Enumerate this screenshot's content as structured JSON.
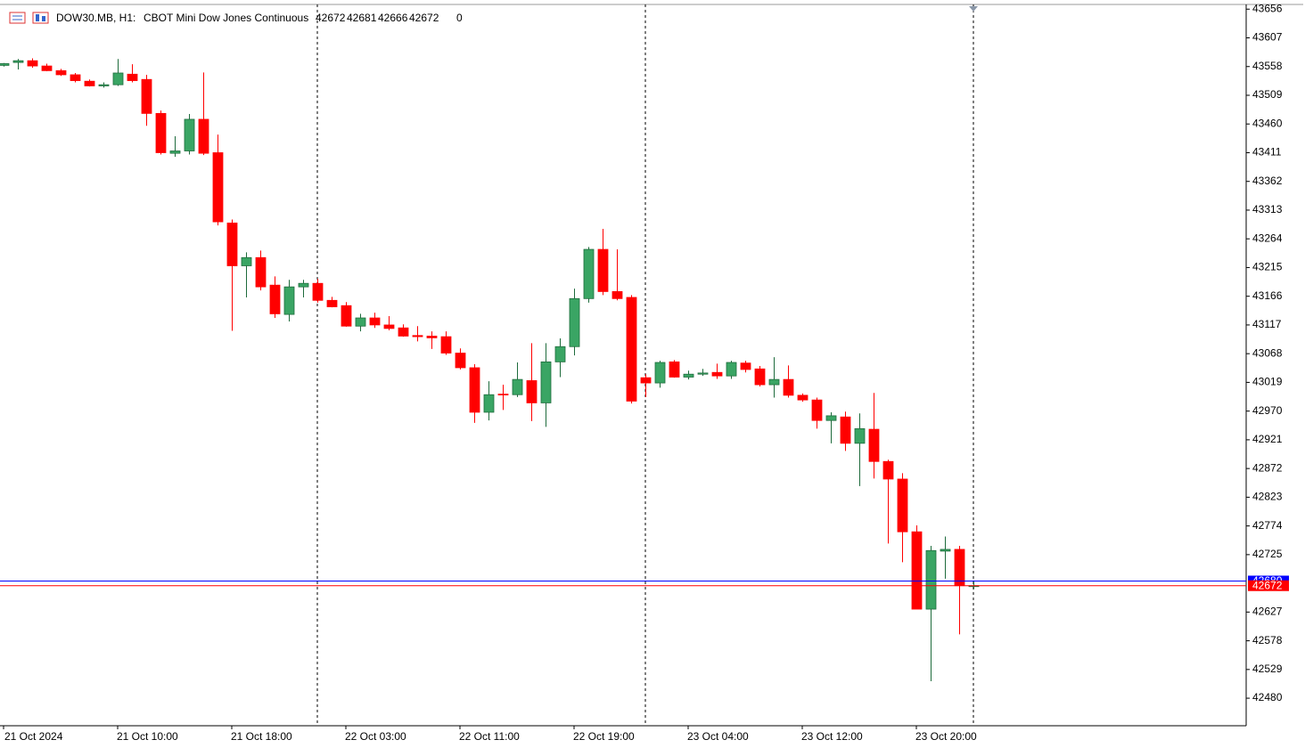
{
  "chart_data": {
    "type": "candlestick",
    "title": "DOW30.MB, H1:",
    "subtitle": "CBOT Mini Dow Jones Continuous",
    "volume": 0,
    "categories": [
      "21 Oct 2024",
      null,
      null,
      null,
      null,
      null,
      null,
      null,
      "21 Oct 10:00",
      null,
      null,
      null,
      null,
      null,
      null,
      null,
      "21 Oct 18:00",
      null,
      null,
      null,
      null,
      null,
      null,
      null,
      "22 Oct 03:00",
      null,
      null,
      null,
      null,
      null,
      null,
      null,
      "22 Oct 11:00",
      null,
      null,
      null,
      null,
      null,
      null,
      null,
      "22 Oct 19:00",
      null,
      null,
      null,
      null,
      null,
      null,
      null,
      "23 Oct 04:00",
      null,
      null,
      null,
      null,
      null,
      null,
      null,
      "23 Oct 12:00",
      null,
      null,
      null,
      null,
      null,
      null,
      null,
      "23 Oct 20:00",
      null,
      null,
      null,
      null
    ],
    "open": [
      43560,
      43565,
      43568,
      43559,
      43551,
      43544,
      43533,
      43525,
      43527,
      43545,
      43536,
      43478,
      43410,
      43414,
      43468,
      43411,
      43291,
      43218,
      43232,
      43185,
      43135,
      43182,
      43188,
      43159,
      43150,
      43115,
      43129,
      43117,
      43112,
      43099,
      43098,
      43097,
      43069,
      43044,
      42968,
      42999,
      42998,
      43022,
      42984,
      43054,
      43080,
      43162,
      43246,
      43174,
      43164,
      43027,
      43018,
      43054,
      43028,
      43033,
      43036,
      43030,
      43052,
      43042,
      43015,
      43024,
      42997,
      42989,
      42954,
      42960,
      42915,
      42939,
      42884,
      42854,
      42764,
      42632,
      42731,
      42734,
      42672
    ],
    "high": [
      43564,
      43571,
      43572,
      43563,
      43554,
      43547,
      43536,
      43531,
      43571,
      43562,
      43544,
      43483,
      43439,
      43477,
      43548,
      43442,
      43297,
      43241,
      43244,
      43200,
      43194,
      43194,
      43196,
      43165,
      43156,
      43136,
      43138,
      43132,
      43118,
      43115,
      43106,
      43106,
      43077,
      43050,
      43021,
      43015,
      43053,
      43086,
      43086,
      43094,
      43179,
      43250,
      43281,
      43246,
      43168,
      43033,
      43056,
      43057,
      43039,
      43042,
      43051,
      43056,
      43056,
      43047,
      43062,
      43048,
      43000,
      42993,
      42968,
      42969,
      42966,
      43001,
      42887,
      42864,
      42775,
      42740,
      42756,
      42740,
      42681
    ],
    "low": [
      43558,
      43553,
      43556,
      43550,
      43542,
      43531,
      43524,
      43522,
      43525,
      43531,
      43457,
      43408,
      43404,
      43408,
      43407,
      43287,
      43107,
      43164,
      43176,
      43129,
      43123,
      43164,
      43155,
      43147,
      43114,
      43106,
      43112,
      43108,
      43097,
      43089,
      43076,
      43066,
      43041,
      42950,
      42954,
      42972,
      42994,
      42953,
      42943,
      43028,
      43065,
      43155,
      43168,
      43159,
      42983,
      42994,
      43010,
      43027,
      43024,
      43030,
      43025,
      43025,
      43036,
      43012,
      42993,
      42993,
      42986,
      42940,
      42915,
      42902,
      42842,
      42855,
      42744,
      42712,
      42632,
      42509,
      42684,
      42589,
      42666
    ],
    "close": [
      43563,
      43568,
      43559,
      43551,
      43544,
      43534,
      43525,
      43527,
      43547,
      43534,
      43478,
      43411,
      43414,
      43468,
      43410,
      43293,
      43218,
      43232,
      43182,
      43136,
      43182,
      43188,
      43159,
      43148,
      43115,
      43129,
      43117,
      43111,
      43098,
      43097,
      43095,
      43069,
      43044,
      42968,
      42998,
      42998,
      43024,
      42984,
      43054,
      43080,
      43162,
      43246,
      43174,
      43162,
      42987,
      43018,
      43053,
      43028,
      43033,
      43035,
      43030,
      43053,
      43041,
      43015,
      43024,
      42997,
      42989,
      42954,
      42962,
      42915,
      42940,
      42884,
      42854,
      42764,
      42632,
      42732,
      42734,
      42672,
      42672
    ],
    "up_color": "#3aa564",
    "down_color": "#ff0000",
    "bid": 42672,
    "bid_color": "#ff0000",
    "ask": 42680,
    "ask_color": "#0000ff",
    "ylim": [
      42433,
      43664
    ],
    "yticks": [
      42480,
      42529,
      42578,
      42627,
      42725,
      42774,
      42823,
      42872,
      42921,
      42970,
      43019,
      43068,
      43117,
      43166,
      43215,
      43264,
      43313,
      43362,
      43411,
      43460,
      43509,
      43558,
      43607,
      43656
    ]
  }
}
